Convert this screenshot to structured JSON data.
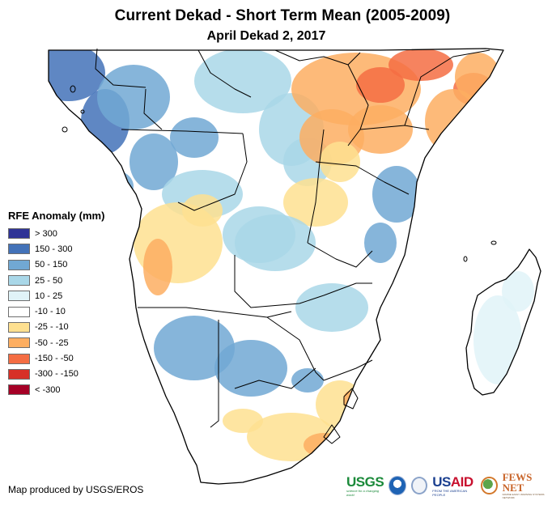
{
  "header": {
    "title": "Current Dekad - Short Term Mean (2005-2009)",
    "subtitle": "April Dekad 2, 2017"
  },
  "legend": {
    "title": "RFE Anomaly (mm)",
    "classes": [
      {
        "label": "> 300",
        "color": "#2f3396"
      },
      {
        "label": "150 - 300",
        "color": "#4372b8"
      },
      {
        "label": "50 - 150",
        "color": "#71a8d3"
      },
      {
        "label": "25 - 50",
        "color": "#a9d7e8"
      },
      {
        "label": "10 - 25",
        "color": "#e0f3f8"
      },
      {
        "label": "-10 - 10",
        "color": "#ffffff"
      },
      {
        "label": "-25 - -10",
        "color": "#fee090"
      },
      {
        "label": "-50 - -25",
        "color": "#fdae61"
      },
      {
        "label": "-150 - -50",
        "color": "#f46d43"
      },
      {
        "label": "-300 - -150",
        "color": "#d73027"
      },
      {
        "label": "< -300",
        "color": "#a50026"
      }
    ]
  },
  "map": {
    "region": "Central, East and Southern Africa",
    "border_color": "#000000",
    "patches": [
      {
        "area": "Cameroon/Gabon coast",
        "class": "150 - 300"
      },
      {
        "area": "Gabon/Congo interior",
        "class": "50 - 150"
      },
      {
        "area": "Central African Republic",
        "class": "25 - 50"
      },
      {
        "area": "South Sudan/Ethiopia",
        "class": "-50 - -25"
      },
      {
        "area": "Ethiopia highlands",
        "class": "-150 - -50"
      },
      {
        "area": "Somalia",
        "class": "-50 - -25"
      },
      {
        "area": "Kenya north",
        "class": "-50 - -25"
      },
      {
        "area": "Uganda/Tanzania west",
        "class": "-25 - -10"
      },
      {
        "area": "Tanzania east",
        "class": "50 - 150"
      },
      {
        "area": "Angola west",
        "class": "-25 - -10"
      },
      {
        "area": "Angola coast",
        "class": "-50 - -25"
      },
      {
        "area": "Zambia",
        "class": "25 - 50"
      },
      {
        "area": "Namibia/Botswana",
        "class": "50 - 150"
      },
      {
        "area": "South Africa east",
        "class": "-25 - -10"
      },
      {
        "area": "Eastern Cape",
        "class": "-50 - -25"
      },
      {
        "area": "Madagascar",
        "class": "10 - 25"
      }
    ]
  },
  "footer": {
    "credit": "Map produced by USGS/EROS",
    "logos": [
      {
        "name": "USGS",
        "text": "USGS",
        "tagline": "science for a changing world"
      },
      {
        "name": "NOAA",
        "text": "NOAA"
      },
      {
        "name": "USAID",
        "text": "USAID",
        "tagline": "FROM THE AMERICAN PEOPLE"
      },
      {
        "name": "FEWS NET",
        "text": "FEWS NET",
        "tagline": "FAMINE EARLY WARNING SYSTEMS NETWORK"
      }
    ]
  }
}
